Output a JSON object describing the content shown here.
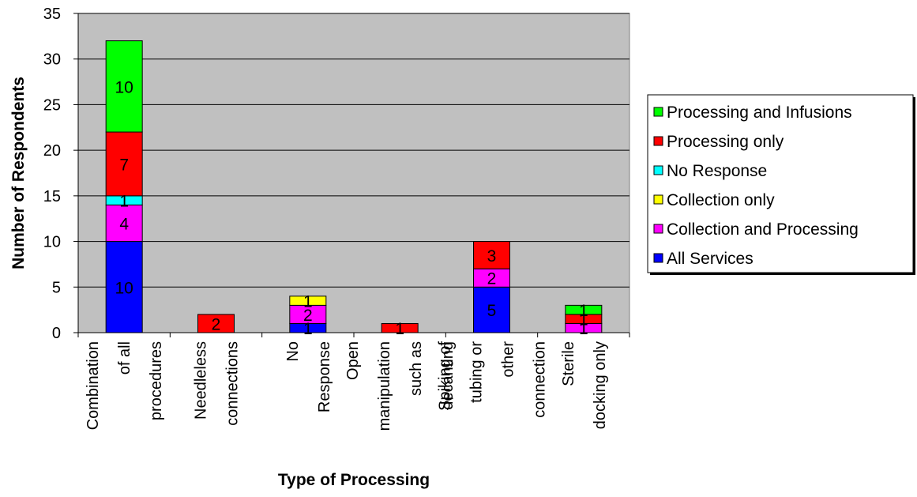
{
  "chart_data": {
    "type": "bar",
    "stacked": true,
    "title": "",
    "xlabel": "Type of Processing",
    "ylabel": "Number of Respondents",
    "ylim": [
      0,
      35
    ],
    "yticks": [
      0,
      5,
      10,
      15,
      20,
      25,
      30,
      35
    ],
    "grid": true,
    "legend_position": "right",
    "categories": [
      [
        "Combination",
        "of all",
        "procedures"
      ],
      [
        "Needleless",
        "connections"
      ],
      [
        "No",
        "Response"
      ],
      [
        "Open",
        "manipulation",
        "such as",
        "decanting"
      ],
      [
        "Spiking of",
        "tubing or",
        "other",
        "connection"
      ],
      [
        "Sterile",
        "docking only"
      ]
    ],
    "series": [
      {
        "name": "All Services",
        "color": "#0000ff",
        "values": [
          10,
          0,
          1,
          0,
          5,
          0
        ]
      },
      {
        "name": "Collection and Processing",
        "color": "#ff00ff",
        "values": [
          4,
          0,
          2,
          0,
          2,
          1
        ]
      },
      {
        "name": "Collection only",
        "color": "#ffff00",
        "values": [
          0,
          0,
          1,
          0,
          0,
          0
        ]
      },
      {
        "name": "No Response",
        "color": "#00ffff",
        "values": [
          1,
          0,
          0,
          0,
          0,
          0
        ]
      },
      {
        "name": "Processing only",
        "color": "#ff0000",
        "values": [
          7,
          2,
          0,
          1,
          3,
          1
        ]
      },
      {
        "name": "Processing and Infusions",
        "color": "#00ff00",
        "values": [
          10,
          0,
          0,
          0,
          0,
          1
        ]
      }
    ],
    "legend_order": [
      "Processing and Infusions",
      "Processing only",
      "No Response",
      "Collection only",
      "Collection and Processing",
      "All Services"
    ],
    "plot_background": "#c0c0c0"
  }
}
